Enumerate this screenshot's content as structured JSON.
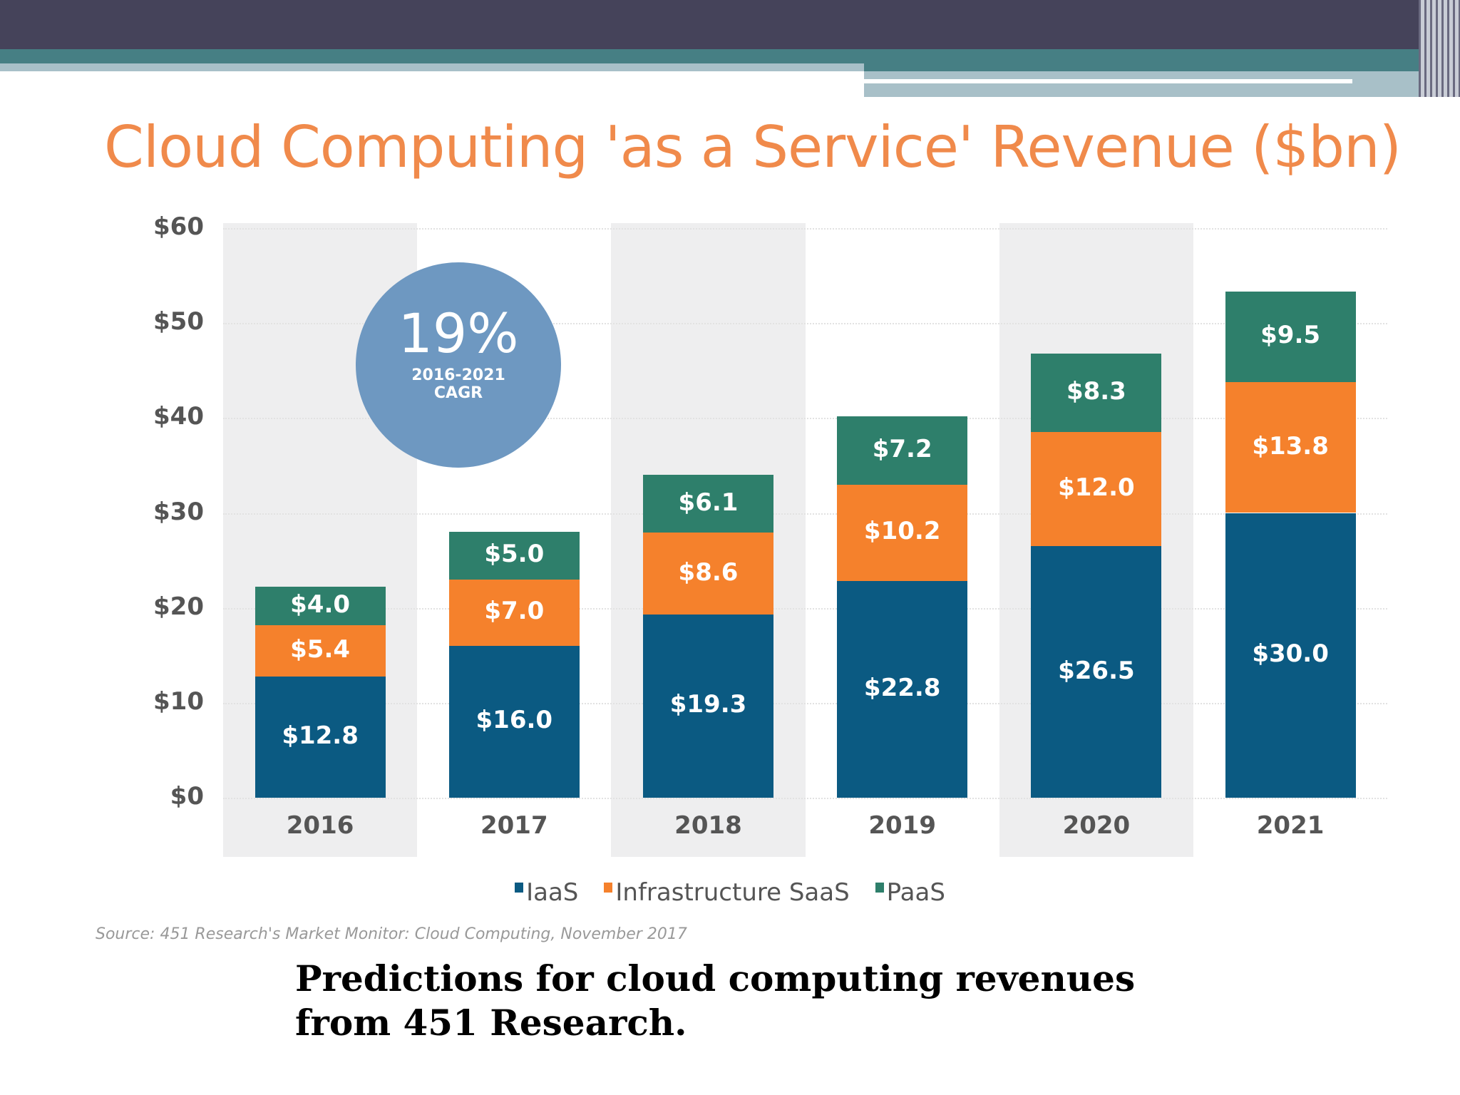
{
  "chart_data": {
    "type": "bar",
    "stacked": true,
    "title": "Cloud Computing 'as a Service' Revenue ($bn)",
    "categories": [
      "2016",
      "2017",
      "2018",
      "2019",
      "2020",
      "2021"
    ],
    "series": [
      {
        "name": "IaaS",
        "color": "#0b5a82",
        "values": [
          12.8,
          16.0,
          19.3,
          22.8,
          26.5,
          30.0
        ],
        "labels": [
          "$12.8",
          "$16.0",
          "$19.3",
          "$22.8",
          "$26.5",
          "$30.0"
        ]
      },
      {
        "name": "Infrastructure SaaS",
        "color": "#f5812c",
        "values": [
          5.4,
          7.0,
          8.6,
          10.2,
          12.0,
          13.8
        ],
        "labels": [
          "$5.4",
          "$7.0",
          "$8.6",
          "$10.2",
          "$12.0",
          "$13.8"
        ]
      },
      {
        "name": "PaaS",
        "color": "#2e7f6b",
        "values": [
          4.0,
          5.0,
          6.1,
          7.2,
          8.3,
          9.5
        ],
        "labels": [
          "$4.0",
          "$5.0",
          "$6.1",
          "$7.2",
          "$8.3",
          "$9.5"
        ]
      }
    ],
    "ylim": [
      0,
      60
    ],
    "yticks": [
      "$0",
      "$10",
      "$20",
      "$30",
      "$40",
      "$50",
      "$60"
    ],
    "grid": true,
    "legend": "bottom",
    "annotation": {
      "value": "19%",
      "line1": "2016-2021",
      "line2": "CAGR"
    }
  },
  "source": "Source: 451 Research's Market Monitor: Cloud Computing, November 2017",
  "caption": {
    "line1": "Predictions for cloud computing revenues",
    "line2": "from 451 Research."
  }
}
